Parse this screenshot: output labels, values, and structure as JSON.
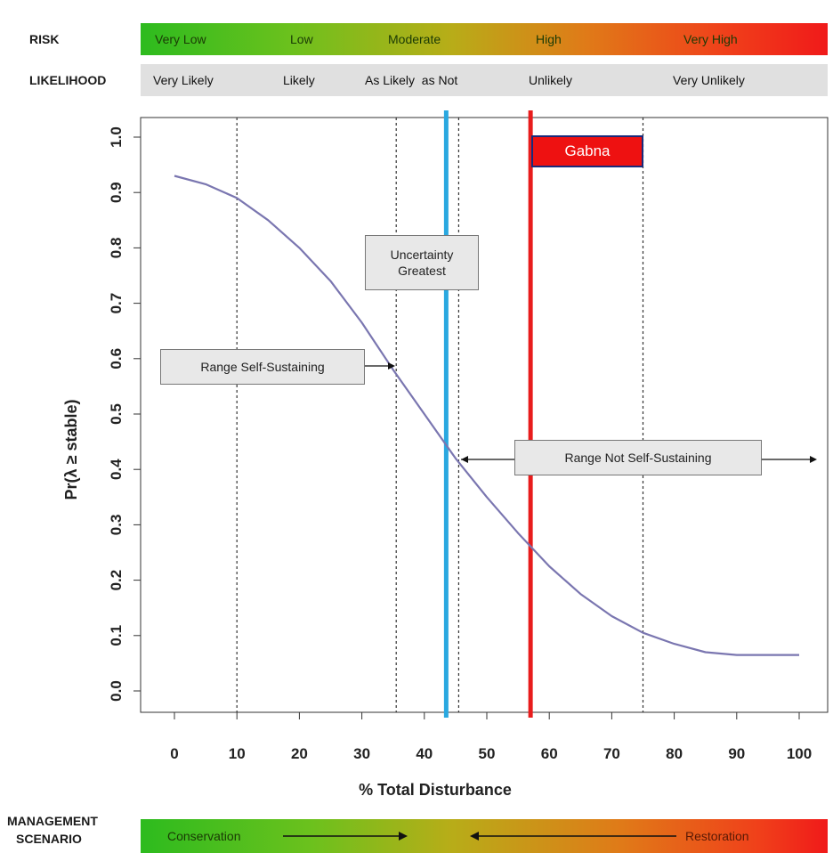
{
  "header": {
    "risk_title": "RISK",
    "likelihood_title": "LIKELIHOOD",
    "management_title_line1": "MANAGEMENT",
    "management_title_line2": "SCENARIO"
  },
  "risk_levels": [
    "Very Low",
    "Low",
    "Moderate",
    "High",
    "Very High"
  ],
  "likelihood_levels": [
    "Very Likely",
    "Likely",
    "As Likely  as Not",
    "Unlikely",
    "Very Unlikely"
  ],
  "management": {
    "left": "Conservation",
    "right": "Restoration"
  },
  "annotations": {
    "uncertainty_line1": "Uncertainty",
    "uncertainty_line2": "Greatest",
    "self_sustaining": "Range Self-Sustaining",
    "not_self_sustaining": "Range Not Self-Sustaining",
    "marker_label": "Gabna"
  },
  "colors": {
    "curve": "#7a76b0",
    "uncertainty_line": "#2aa8e0",
    "marker_line": "#e81c1c",
    "marker_box": "#ee1111"
  },
  "chart_data": {
    "type": "line",
    "title": "",
    "xlabel": "% Total Disturbance",
    "ylabel": "Pr(λ ≥ stable)",
    "xlim": [
      0,
      100
    ],
    "ylim": [
      0,
      1.0
    ],
    "xticks": [
      0,
      10,
      20,
      30,
      40,
      50,
      60,
      70,
      80,
      90,
      100
    ],
    "yticks": [
      "0.0",
      "0.1",
      "0.2",
      "0.3",
      "0.4",
      "0.5",
      "0.6",
      "0.7",
      "0.8",
      "0.9",
      "1.0"
    ],
    "grid": false,
    "series": [
      {
        "x": [
          0,
          5,
          10,
          15,
          20,
          25,
          30,
          35,
          40,
          45,
          50,
          55,
          60,
          65,
          70,
          75,
          80,
          85,
          90,
          95,
          100
        ],
        "values": [
          0.93,
          0.915,
          0.89,
          0.85,
          0.8,
          0.74,
          0.665,
          0.58,
          0.5,
          0.42,
          0.35,
          0.285,
          0.225,
          0.175,
          0.135,
          0.105,
          0.085,
          0.07,
          0.065,
          0.065,
          0.065
        ]
      }
    ],
    "vertical_lines": {
      "dotted": [
        10,
        35.5,
        45.5,
        75
      ],
      "uncertainty": 43.5,
      "marker": 57
    }
  }
}
